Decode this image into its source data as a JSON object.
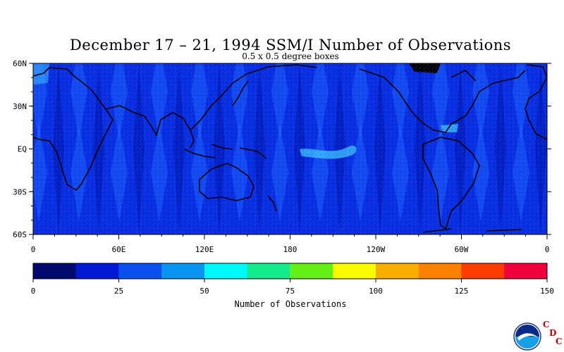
{
  "title": "December 17 – 21, 1994 SSM/I Number of Observations",
  "subtitle": "0.5 x 0.5 degree boxes",
  "map": {
    "lat_labels": [
      "60N",
      "30N",
      "EQ",
      "30S",
      "60S"
    ],
    "lon_labels": [
      "0",
      "60E",
      "120E",
      "180",
      "120W",
      "60W",
      "0"
    ],
    "lat_range": [
      -60,
      60
    ],
    "lon_range": [
      0,
      360
    ],
    "ocean_color": "#0a2fe0",
    "land_color": "#1144ee",
    "coast_color": "#000000"
  },
  "colorbar": {
    "title": "Number of Observations",
    "ticks": [
      "0",
      "25",
      "50",
      "75",
      "100",
      "125",
      "150"
    ],
    "min": 0,
    "max": 150,
    "step": 12.5,
    "colors": [
      "#000a6e",
      "#0019d2",
      "#0a50f0",
      "#0a96f0",
      "#00fafa",
      "#14eb8c",
      "#64f014",
      "#fafa00",
      "#faaf00",
      "#fa8200",
      "#fa3c00",
      "#f0003c"
    ]
  },
  "logo": {
    "icon": "noaa-logo-icon",
    "letters": [
      "C",
      "D",
      "C"
    ],
    "accent": "#cc0000"
  }
}
